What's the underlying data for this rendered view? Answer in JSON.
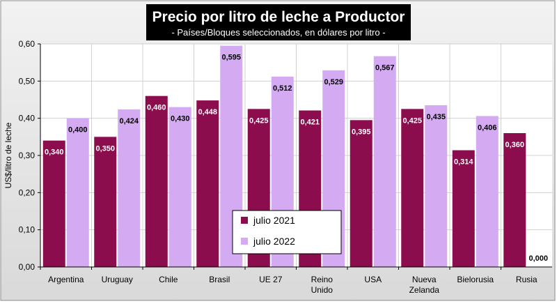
{
  "chart_data": {
    "type": "bar",
    "title": "Precio por litro de leche a Productor",
    "subtitle": "- Países/Bloques seleccionados, en dólares por litro -",
    "xlabel": "",
    "ylabel": "US$/litro de leche",
    "ylim": [
      0,
      0.6
    ],
    "yticks": [
      "0,00",
      "0,10",
      "0,20",
      "0,30",
      "0,40",
      "0,50",
      "0,60"
    ],
    "categories": [
      "Argentina",
      "Uruguay",
      "Chile",
      "Brasil",
      "UE 27",
      "Reino Unido",
      "USA",
      "Nueva Zelanda",
      "Bielorusia",
      "Rusia"
    ],
    "series": [
      {
        "name": "julio 2021",
        "color": "#8B0D4D",
        "values": [
          0.34,
          0.35,
          0.46,
          0.448,
          0.425,
          0.421,
          0.395,
          0.425,
          0.314,
          0.36
        ],
        "labels": [
          "0,340",
          "0,350",
          "0,460",
          "0,448",
          "0,425",
          "0,421",
          "0,395",
          "0,425",
          "0,314",
          "0,360"
        ]
      },
      {
        "name": "julio 2022",
        "color": "#D4AAF2",
        "values": [
          0.4,
          0.424,
          0.43,
          0.595,
          0.512,
          0.529,
          0.567,
          0.435,
          0.406,
          0.0
        ],
        "labels": [
          "0,400",
          "0,424",
          "0,430",
          "0,595",
          "0,512",
          "0,529",
          "0,567",
          "0,435",
          "0,406",
          "0,000"
        ]
      }
    ],
    "grid": true,
    "legend_position": "bottom-center"
  }
}
